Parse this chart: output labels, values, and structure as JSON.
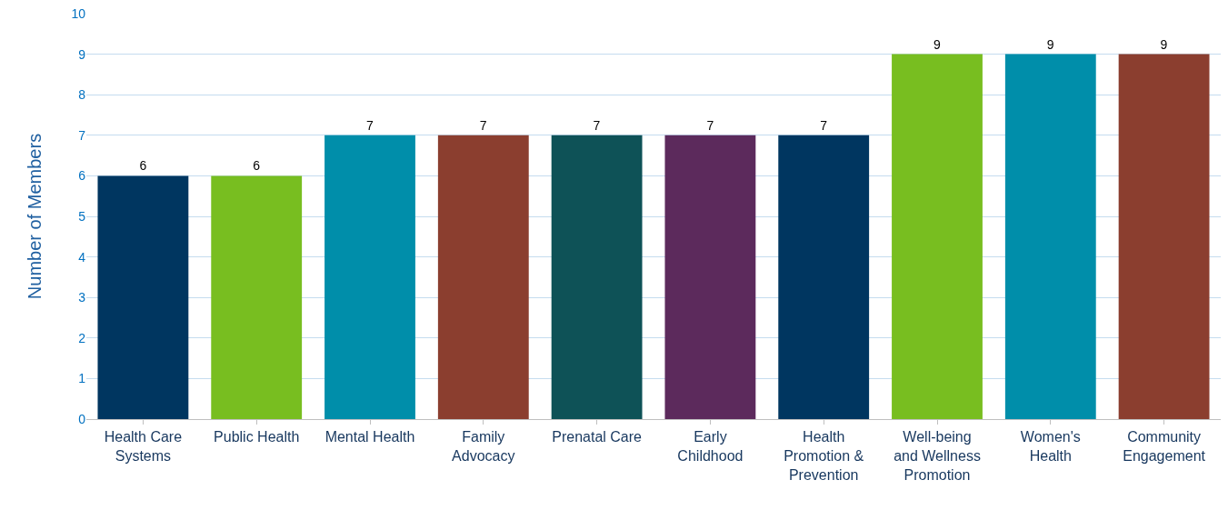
{
  "chart_data": {
    "type": "bar",
    "ylabel": "Number of Members",
    "categories": [
      "Health Care Systems",
      "Public Health",
      "Mental Health",
      "Family Advocacy",
      "Prenatal Care",
      "Early Childhood",
      "Health Promotion & Prevention",
      "Well-being and Wellness Promotion",
      "Women's Health",
      "Community Engagement"
    ],
    "values": [
      6,
      6,
      7,
      7,
      7,
      7,
      7,
      9,
      9,
      9
    ],
    "colors": [
      "#003660",
      "#78be20",
      "#008eaa",
      "#8b3e2f",
      "#0e5257",
      "#5c2a5c",
      "#003660",
      "#78be20",
      "#008eaa",
      "#8b3e2f"
    ],
    "ylim": [
      0,
      10
    ],
    "yticks": [
      0,
      1,
      2,
      3,
      4,
      5,
      6,
      7,
      8,
      9,
      10
    ],
    "grid": "y",
    "data_labels": true
  }
}
